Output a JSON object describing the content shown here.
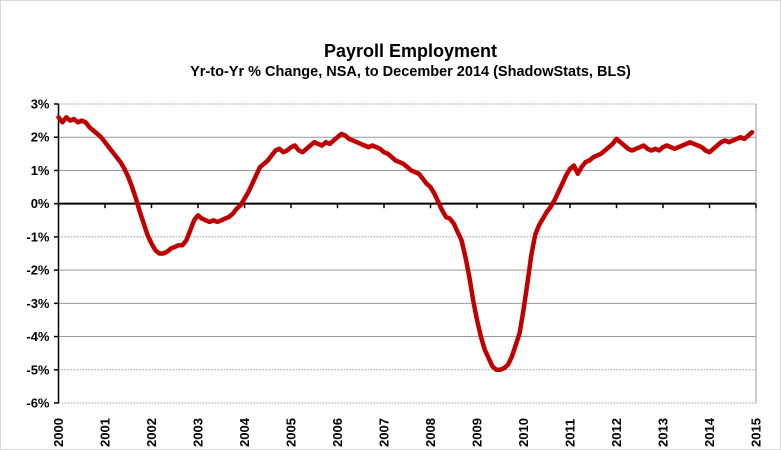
{
  "chart_data": {
    "type": "line",
    "title": "Payroll Employment",
    "subtitle": "Yr-to-Yr % Change, NSA, to December 2014 (ShadowStats, BLS)",
    "xlabel": "",
    "ylabel": "",
    "ylim": [
      -6,
      3
    ],
    "y_tick_step": 1,
    "y_tick_labels": [
      "3%",
      "2%",
      "1%",
      "0%",
      "-1%",
      "-2%",
      "-3%",
      "-4%",
      "-5%",
      "-6%"
    ],
    "x_tick_labels": [
      "2000",
      "2001",
      "2002",
      "2003",
      "2004",
      "2005",
      "2006",
      "2007",
      "2008",
      "2009",
      "2010",
      "2011",
      "2012",
      "2013",
      "2014",
      "2015"
    ],
    "x_start_year": 2000,
    "x_end_year": 2015,
    "frequency": "monthly",
    "grid": true,
    "legend_position": "none",
    "line_color": "#C00000",
    "gridline_color": "#9a9a9a",
    "zero_line_color": "#000000",
    "series": [
      {
        "name": "Payroll Employment Yr-to-Yr % Change (NSA)",
        "color": "#C00000",
        "start_month": "2000-01",
        "end_month": "2014-12",
        "values": [
          2.6,
          2.45,
          2.6,
          2.5,
          2.55,
          2.45,
          2.5,
          2.45,
          2.3,
          2.2,
          2.1,
          2.0,
          1.85,
          1.7,
          1.55,
          1.4,
          1.25,
          1.05,
          0.8,
          0.5,
          0.15,
          -0.25,
          -0.6,
          -0.95,
          -1.2,
          -1.4,
          -1.5,
          -1.5,
          -1.45,
          -1.35,
          -1.3,
          -1.25,
          -1.25,
          -1.1,
          -0.8,
          -0.5,
          -0.35,
          -0.45,
          -0.5,
          -0.55,
          -0.5,
          -0.55,
          -0.5,
          -0.45,
          -0.4,
          -0.3,
          -0.15,
          -0.05,
          0.15,
          0.35,
          0.6,
          0.85,
          1.1,
          1.2,
          1.3,
          1.45,
          1.6,
          1.65,
          1.55,
          1.6,
          1.7,
          1.75,
          1.6,
          1.55,
          1.65,
          1.75,
          1.85,
          1.8,
          1.75,
          1.85,
          1.8,
          1.9,
          2.0,
          2.1,
          2.05,
          1.95,
          1.9,
          1.85,
          1.8,
          1.75,
          1.7,
          1.75,
          1.7,
          1.65,
          1.55,
          1.5,
          1.4,
          1.3,
          1.25,
          1.2,
          1.1,
          1.0,
          0.95,
          0.9,
          0.75,
          0.6,
          0.5,
          0.3,
          0.05,
          -0.2,
          -0.4,
          -0.45,
          -0.6,
          -0.85,
          -1.1,
          -1.6,
          -2.2,
          -2.9,
          -3.5,
          -4.0,
          -4.4,
          -4.65,
          -4.9,
          -5.0,
          -5.0,
          -4.95,
          -4.85,
          -4.6,
          -4.25,
          -3.9,
          -3.2,
          -2.4,
          -1.55,
          -0.95,
          -0.65,
          -0.45,
          -0.25,
          -0.1,
          0.1,
          0.35,
          0.6,
          0.85,
          1.05,
          1.15,
          0.9,
          1.1,
          1.25,
          1.3,
          1.4,
          1.45,
          1.5,
          1.6,
          1.7,
          1.8,
          1.95,
          1.85,
          1.75,
          1.65,
          1.6,
          1.65,
          1.7,
          1.75,
          1.65,
          1.6,
          1.65,
          1.6,
          1.7,
          1.75,
          1.7,
          1.65,
          1.7,
          1.75,
          1.8,
          1.85,
          1.8,
          1.75,
          1.7,
          1.6,
          1.55,
          1.65,
          1.75,
          1.85,
          1.9,
          1.85,
          1.9,
          1.95,
          2.0,
          1.95,
          2.05,
          2.15
        ]
      }
    ]
  }
}
